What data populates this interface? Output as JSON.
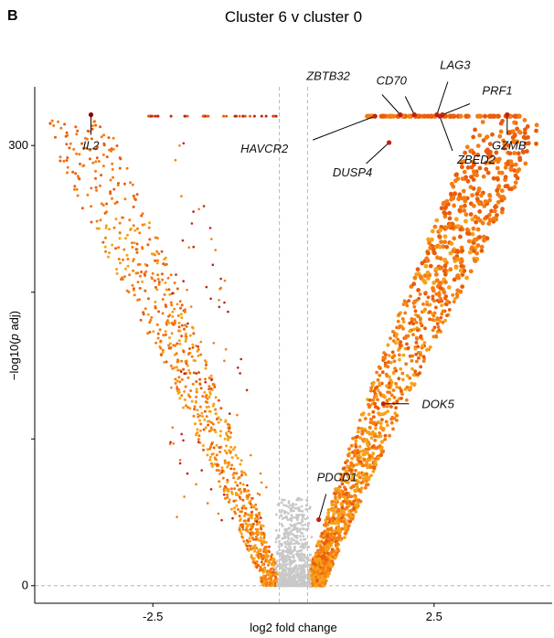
{
  "chart_data": {
    "type": "scatter",
    "panel_letter": "B",
    "title": "Cluster 6 v cluster 0",
    "xlabel": "log2 fold change",
    "ylabel_prefix": "−log10(",
    "ylabel_italic": "p",
    "ylabel_suffix": " adj)",
    "xlim": [
      -4.6,
      4.6
    ],
    "ylim": [
      -12,
      340
    ],
    "x_ticks": [
      {
        "value": -2.5,
        "label": "-2.5"
      },
      {
        "value": 2.5,
        "label": "2.5"
      }
    ],
    "y_ticks": [
      {
        "value": 0,
        "label": "0"
      },
      {
        "value": 100,
        "label": ""
      },
      {
        "value": 200,
        "label": ""
      },
      {
        "value": 300,
        "label": "300"
      }
    ],
    "reference_lines": {
      "x": [
        -0.25,
        0.25
      ],
      "y": [
        0
      ]
    },
    "grid": false,
    "legend": "none",
    "colors": {
      "nonsignificant": "#c8c8c8",
      "light": "#f7a11a",
      "mid": "#f47c12",
      "strong": "#e95c0c",
      "dark": "#c0220e",
      "darkest": "#8b0000"
    },
    "highlighted_genes": [
      {
        "gene": "IL2",
        "x": -3.6,
        "y": 321
      },
      {
        "gene": "HAVCR2",
        "x": 1.45,
        "y": 320
      },
      {
        "gene": "ZBTB32",
        "x": 1.9,
        "y": 321
      },
      {
        "gene": "CD70",
        "x": 2.15,
        "y": 321
      },
      {
        "gene": "LAG3",
        "x": 2.55,
        "y": 321
      },
      {
        "gene": "PRF1",
        "x": 2.65,
        "y": 321
      },
      {
        "gene": "ZBED2",
        "x": 2.6,
        "y": 320
      },
      {
        "gene": "GZMB",
        "x": 3.8,
        "y": 321
      },
      {
        "gene": "DUSP4",
        "x": 1.7,
        "y": 302
      },
      {
        "gene": "DOK5",
        "x": 1.6,
        "y": 124
      },
      {
        "gene": "PDCD1",
        "x": 0.45,
        "y": 45
      }
    ]
  }
}
